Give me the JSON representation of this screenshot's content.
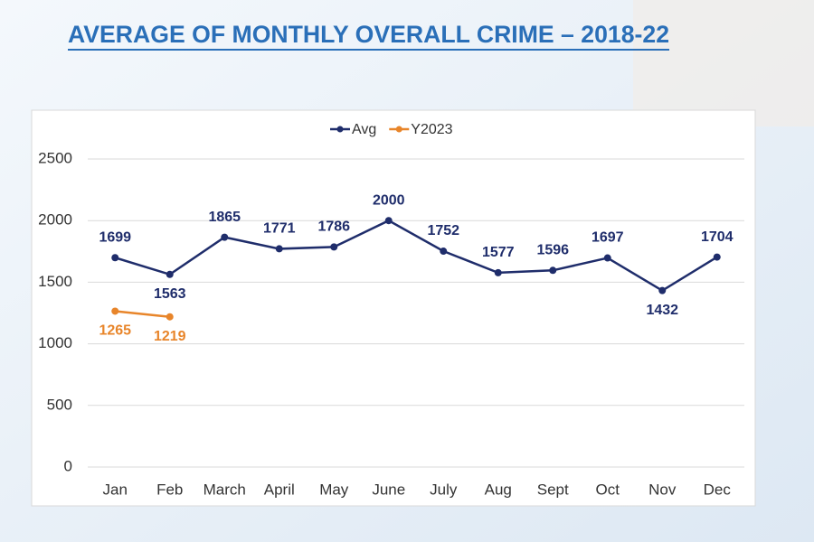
{
  "chart_data": {
    "type": "line",
    "title": "AVERAGE OF MONTHLY OVERALL CRIME – 2018-22",
    "categories": [
      "Jan",
      "Feb",
      "March",
      "April",
      "May",
      "June",
      "July",
      "Aug",
      "Sept",
      "Oct",
      "Nov",
      "Dec"
    ],
    "series": [
      {
        "name": "Avg",
        "color": "#1f2d6b",
        "values": [
          1699,
          1563,
          1865,
          1771,
          1786,
          2000,
          1752,
          1577,
          1596,
          1697,
          1432,
          1704
        ]
      },
      {
        "name": "Y2023",
        "color": "#e8852a",
        "values": [
          1265,
          1219,
          null,
          null,
          null,
          null,
          null,
          null,
          null,
          null,
          null,
          null
        ]
      }
    ],
    "ylim": [
      0,
      2500
    ],
    "yticks": [
      0,
      500,
      1000,
      1500,
      2000,
      2500
    ],
    "grid": true,
    "legend": "top"
  }
}
